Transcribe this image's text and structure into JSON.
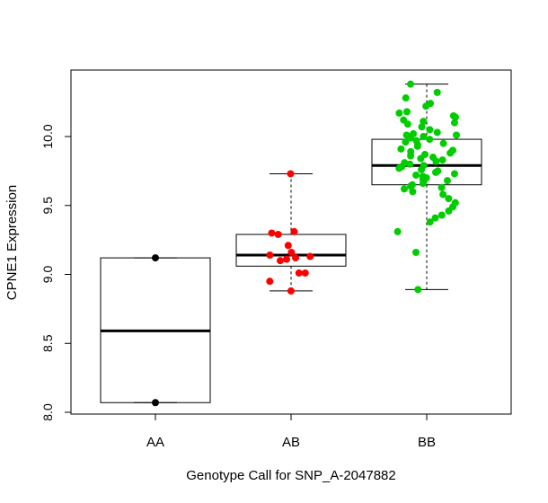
{
  "chart_data": {
    "type": "boxplot",
    "title": "",
    "xlabel": "Genotype Call for SNP_A-2047882",
    "ylabel": "CPNE1 Expression",
    "ylim": [
      8.0,
      10.4
    ],
    "y_ticks": [
      "8.0",
      "8.5",
      "9.0",
      "9.5",
      "10.0"
    ],
    "y_tick_values": [
      8.0,
      8.5,
      9.0,
      9.5,
      10.0
    ],
    "grid": false,
    "legend": "none",
    "categories": [
      "AA",
      "AB",
      "BB"
    ],
    "boxes": [
      {
        "category": "AA",
        "color": "#000000",
        "min": 8.07,
        "q1": 8.07,
        "median": 8.59,
        "q3": 9.12,
        "max": 9.12
      },
      {
        "category": "AB",
        "color": "#ff0000",
        "min": 8.88,
        "q1": 9.06,
        "median": 9.14,
        "q3": 9.29,
        "max": 9.73
      },
      {
        "category": "BB",
        "color": "#00cd00",
        "min": 8.89,
        "q1": 9.65,
        "median": 9.79,
        "q3": 9.98,
        "max": 10.38
      }
    ],
    "points": [
      {
        "category": "AA",
        "values": [
          9.12,
          8.07
        ]
      },
      {
        "category": "AB",
        "values": [
          9.73,
          9.31,
          9.3,
          9.29,
          9.21,
          9.16,
          9.14,
          9.13,
          9.12,
          9.11,
          9.1,
          9.01,
          9.01,
          8.95,
          8.88
        ]
      },
      {
        "category": "BB",
        "values": [
          10.38,
          10.32,
          10.28,
          10.24,
          10.22,
          10.18,
          10.17,
          10.15,
          10.14,
          10.12,
          10.11,
          10.1,
          10.09,
          10.07,
          10.05,
          10.03,
          10.02,
          10.01,
          10.01,
          10.0,
          9.99,
          9.98,
          9.97,
          9.96,
          9.95,
          9.94,
          9.93,
          9.91,
          9.9,
          9.89,
          9.88,
          9.87,
          9.86,
          9.85,
          9.84,
          9.83,
          9.82,
          9.81,
          9.8,
          9.79,
          9.78,
          9.77,
          9.76,
          9.75,
          9.74,
          9.73,
          9.72,
          9.71,
          9.7,
          9.69,
          9.68,
          9.67,
          9.66,
          9.65,
          9.64,
          9.63,
          9.62,
          9.6,
          9.58,
          9.55,
          9.52,
          9.49,
          9.46,
          9.43,
          9.41,
          9.38,
          9.31,
          9.16,
          8.89
        ]
      }
    ]
  }
}
